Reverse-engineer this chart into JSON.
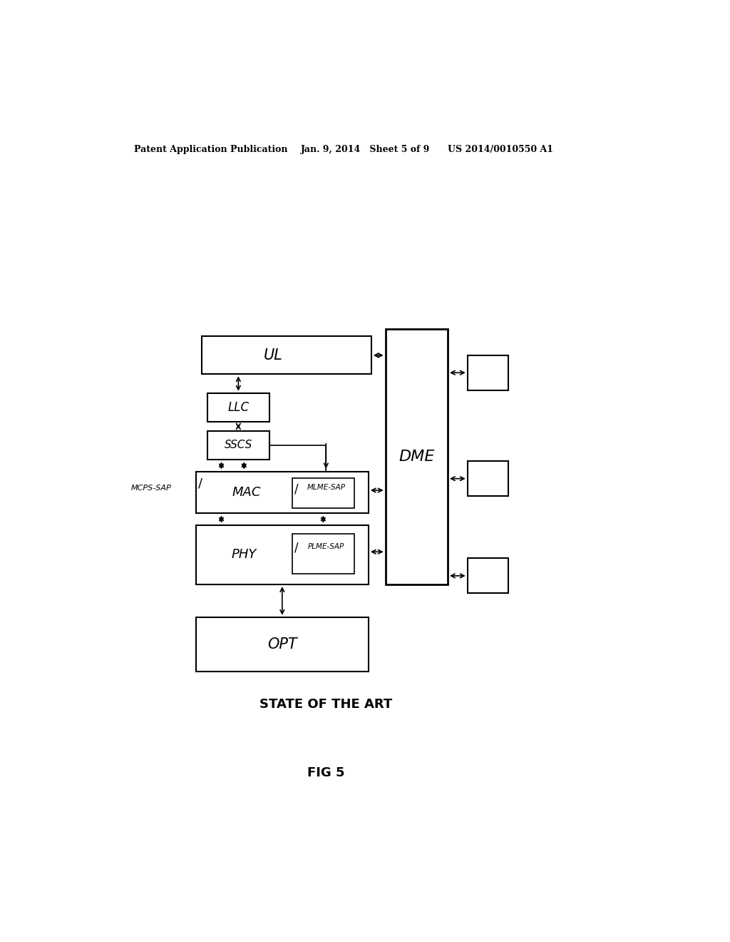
{
  "header_text": "Patent Application Publication",
  "header_date": "Jan. 9, 2014   Sheet 5 of 9",
  "header_patent": "US 2014/0010550 A1",
  "title": "STATE OF THE ART",
  "fig_label": "FIG 5",
  "ul": [
    0.195,
    0.64,
    0.3,
    0.052
  ],
  "llc": [
    0.205,
    0.574,
    0.11,
    0.04
  ],
  "sscs": [
    0.205,
    0.522,
    0.11,
    0.04
  ],
  "mac": [
    0.185,
    0.448,
    0.305,
    0.058
  ],
  "phy": [
    0.185,
    0.35,
    0.305,
    0.082
  ],
  "opt": [
    0.185,
    0.23,
    0.305,
    0.075
  ],
  "dme": [
    0.52,
    0.35,
    0.11,
    0.352
  ],
  "sb1": [
    0.665,
    0.618,
    0.072,
    0.048
  ],
  "sb2": [
    0.665,
    0.472,
    0.072,
    0.048
  ],
  "sb3": [
    0.665,
    0.338,
    0.072,
    0.048
  ],
  "mlme_inner_mac": [
    0.355,
    0.455,
    0.11,
    0.042
  ],
  "plme_inner_phy": [
    0.355,
    0.365,
    0.11,
    0.055
  ]
}
